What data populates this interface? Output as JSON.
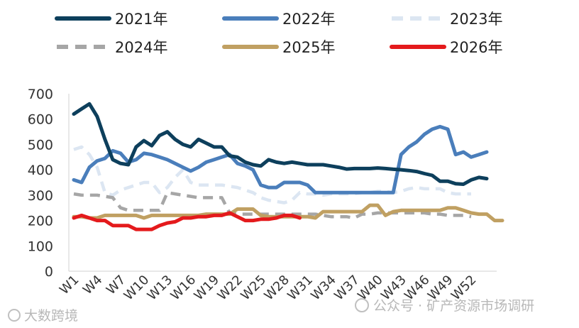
{
  "chart_data": {
    "type": "line",
    "title": "",
    "xlabel": "",
    "ylabel": "",
    "ylim": [
      0,
      700
    ],
    "yticks": [
      0,
      100,
      200,
      300,
      400,
      500,
      600,
      700
    ],
    "x_tick_labels": [
      "W1",
      "W4",
      "W7",
      "W10",
      "W13",
      "W16",
      "W19",
      "W22",
      "W25",
      "W28",
      "W31",
      "W34",
      "W37",
      "W40",
      "W43",
      "W46",
      "W49",
      "W52"
    ],
    "legend_position": "top",
    "grid": false,
    "series": [
      {
        "name": "2021年",
        "color": "#0d3f5c",
        "dash": "solid",
        "values": [
          620,
          640,
          660,
          610,
          520,
          440,
          425,
          420,
          490,
          515,
          495,
          535,
          550,
          520,
          500,
          490,
          520,
          505,
          490,
          490,
          455,
          450,
          430,
          420,
          415,
          440,
          430,
          425,
          430,
          425,
          420,
          420,
          420,
          415,
          410,
          403,
          405,
          405,
          405,
          407,
          405,
          402,
          400,
          397,
          393,
          385,
          378,
          355,
          355,
          345,
          343,
          360,
          370,
          365
        ]
      },
      {
        "name": "2022年",
        "color": "#4a7ebb",
        "dash": "solid",
        "values": [
          360,
          350,
          410,
          435,
          445,
          475,
          465,
          430,
          440,
          465,
          460,
          450,
          440,
          425,
          410,
          395,
          410,
          430,
          440,
          450,
          460,
          425,
          415,
          400,
          340,
          330,
          330,
          350,
          350,
          350,
          340,
          310,
          310,
          310,
          310,
          310,
          310,
          310,
          310,
          310,
          310,
          310,
          460,
          490,
          510,
          540,
          560,
          570,
          560,
          460,
          470,
          450,
          460,
          470
        ]
      },
      {
        "name": "2023年",
        "color": "#dce6f2",
        "dash": "dashed",
        "values": [
          480,
          490,
          460,
          410,
          310,
          300,
          320,
          330,
          340,
          350,
          350,
          310,
          330,
          370,
          400,
          350,
          340,
          340,
          340,
          340,
          335,
          330,
          320,
          310,
          290,
          280,
          275,
          270,
          280,
          310,
          305,
          305,
          300,
          305,
          305,
          305,
          305,
          310,
          310,
          315,
          315,
          310,
          315,
          325,
          330,
          325,
          325,
          325,
          310,
          305,
          305,
          305,
          null,
          null
        ]
      },
      {
        "name": "2024年",
        "color": "#a6a6a6",
        "dash": "dashed",
        "values": [
          305,
          300,
          300,
          300,
          295,
          290,
          250,
          240,
          240,
          240,
          240,
          240,
          310,
          305,
          300,
          295,
          290,
          290,
          290,
          290,
          230,
          225,
          225,
          225,
          225,
          225,
          225,
          225,
          225,
          225,
          225,
          225,
          220,
          215,
          215,
          215,
          210,
          225,
          225,
          230,
          230,
          230,
          230,
          230,
          230,
          230,
          225,
          225,
          220,
          220,
          220,
          215,
          null,
          null
        ]
      },
      {
        "name": "2025年",
        "color": "#c0a062",
        "dash": "solid",
        "values": [
          215,
          215,
          210,
          210,
          220,
          220,
          220,
          220,
          220,
          210,
          220,
          220,
          220,
          220,
          220,
          220,
          220,
          225,
          225,
          225,
          225,
          245,
          245,
          245,
          220,
          215,
          215,
          215,
          215,
          215,
          215,
          210,
          235,
          235,
          235,
          235,
          235,
          235,
          260,
          260,
          220,
          235,
          240,
          240,
          240,
          240,
          240,
          240,
          250,
          250,
          240,
          230,
          225,
          225,
          200,
          200
        ]
      },
      {
        "name": "2026年",
        "color": "#e41a1c",
        "dash": "solid",
        "values": [
          210,
          220,
          210,
          200,
          200,
          180,
          180,
          180,
          165,
          165,
          165,
          180,
          190,
          195,
          210,
          210,
          215,
          215,
          220,
          220,
          230,
          215,
          200,
          200,
          205,
          205,
          210,
          220,
          220,
          210
        ]
      }
    ]
  },
  "watermarks": {
    "left": "大数跨境",
    "right": "公众号 · 矿产资源市场调研"
  }
}
